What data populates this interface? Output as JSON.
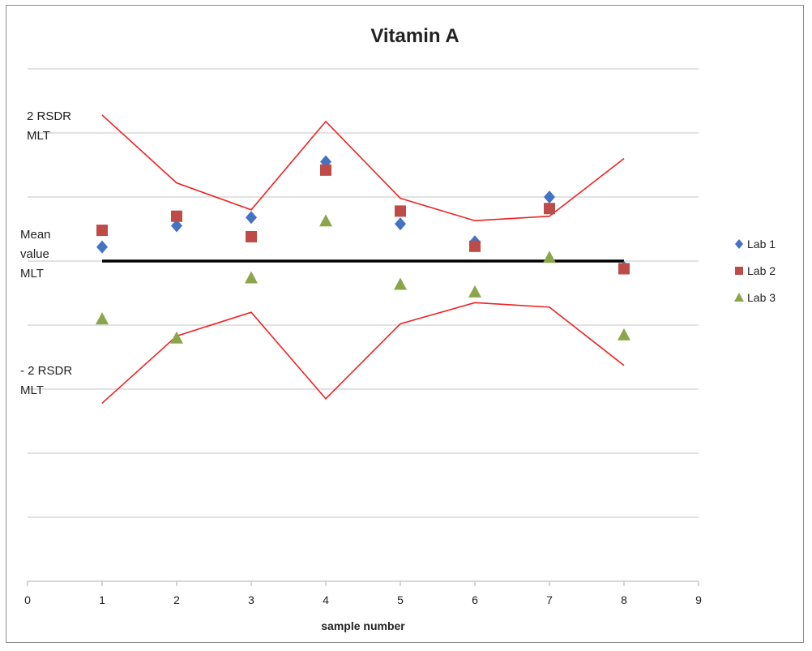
{
  "chart_data": {
    "type": "scatter",
    "title": "Vitamin A",
    "xlabel": "sample number",
    "ylabel": "",
    "xlim": [
      0,
      9
    ],
    "xticks": [
      "0",
      "1",
      "2",
      "3",
      "4",
      "5",
      "6",
      "7",
      "8",
      "9"
    ],
    "ylim": [
      0,
      8
    ],
    "grid": true,
    "legend_position": "right",
    "series": [
      {
        "name": "Lab 1",
        "marker": "diamond",
        "color": "#4472c4",
        "x": [
          1,
          2,
          3,
          4,
          5,
          6,
          7,
          8
        ],
        "y": [
          5.22,
          5.55,
          5.68,
          6.55,
          5.58,
          5.3,
          6.0,
          4.9
        ]
      },
      {
        "name": "Lab 2",
        "marker": "square",
        "color": "#be4b48",
        "x": [
          1,
          2,
          3,
          4,
          5,
          6,
          7,
          8
        ],
        "y": [
          5.48,
          5.7,
          5.38,
          6.42,
          5.78,
          5.23,
          5.82,
          4.88
        ]
      },
      {
        "name": "Lab 3",
        "marker": "triangle",
        "color": "#8aa64b",
        "x": [
          1,
          2,
          3,
          4,
          5,
          6,
          7,
          8
        ],
        "y": [
          4.1,
          3.8,
          4.74,
          5.63,
          4.64,
          4.52,
          5.06,
          3.85
        ]
      }
    ],
    "lines": [
      {
        "label": "2 RSDR MLT",
        "color": "#ee2222",
        "x": [
          1,
          2,
          3,
          4,
          5,
          6,
          7,
          8
        ],
        "y": [
          7.28,
          6.22,
          5.8,
          7.18,
          5.98,
          5.63,
          5.7,
          6.6
        ]
      },
      {
        "label": "Mean value MLT",
        "color": "#000000",
        "x": [
          1,
          8
        ],
        "y": [
          5.0,
          5.0
        ]
      },
      {
        "label": "- 2 RSDR MLT",
        "color": "#ee2222",
        "x": [
          1,
          2,
          3,
          4,
          5,
          6,
          7,
          8
        ],
        "y": [
          2.78,
          3.83,
          4.2,
          2.85,
          4.02,
          4.35,
          4.28,
          3.37
        ]
      }
    ],
    "annotations": [
      {
        "lines": [
          "2 RSDR",
          "MLT"
        ]
      },
      {
        "lines": [
          "Mean",
          "value",
          "MLT"
        ]
      },
      {
        "lines": [
          "- 2 RSDR",
          "MLT"
        ]
      }
    ]
  }
}
